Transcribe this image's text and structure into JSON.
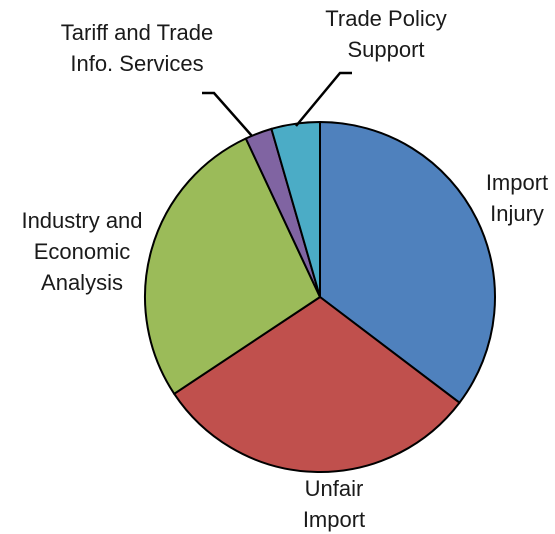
{
  "chart_data": {
    "type": "pie",
    "title": "",
    "slices": [
      {
        "label_lines": [
          "Import",
          "Injury"
        ],
        "value": 35.5,
        "color": "#4f81bd"
      },
      {
        "label_lines": [
          "Unfair",
          "Import"
        ],
        "value": 30.5,
        "color": "#c0504d"
      },
      {
        "label_lines": [
          "Industry and",
          "Economic",
          "Analysis"
        ],
        "value": 27.5,
        "color": "#9bbb59"
      },
      {
        "label_lines": [
          "Tariff and Trade",
          "Info. Services"
        ],
        "value": 2.5,
        "color": "#8064a2"
      },
      {
        "label_lines": [
          "Trade Policy",
          "Support"
        ],
        "value": 4.5,
        "color": "#4bacc6"
      }
    ],
    "start_angle": "12 o'clock",
    "direction": "clockwise"
  }
}
